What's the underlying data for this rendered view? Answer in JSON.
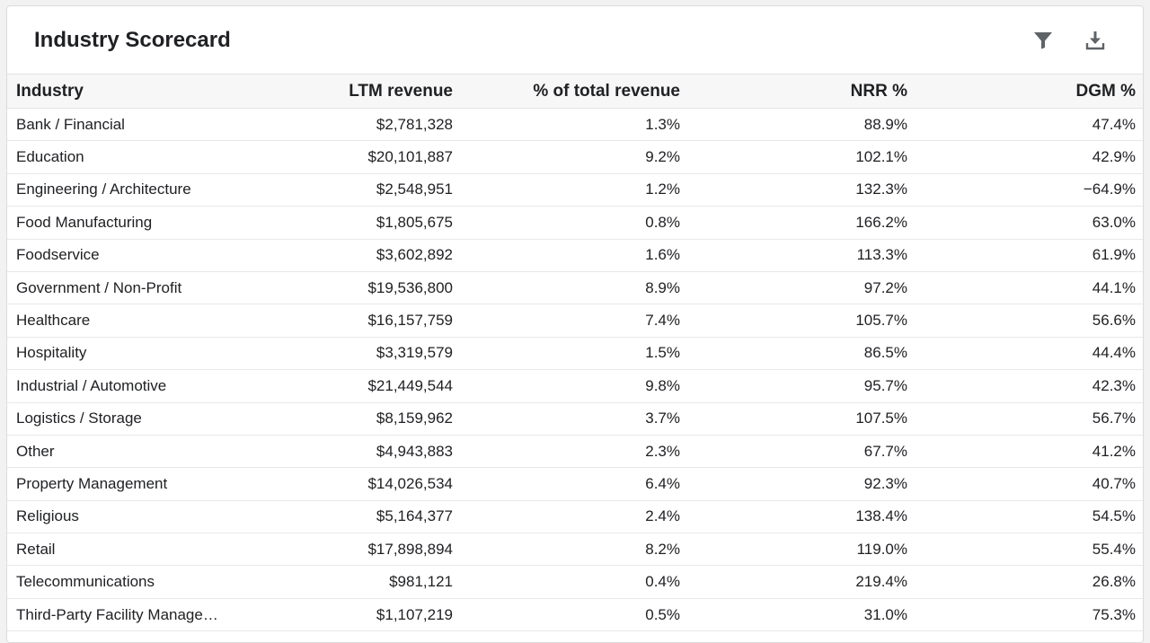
{
  "card": {
    "title": "Industry Scorecard",
    "actions": {
      "filter_icon": "filter-icon",
      "download_icon": "download-icon"
    }
  },
  "table": {
    "columns": [
      "Industry",
      "LTM revenue",
      "% of total revenue",
      "NRR %",
      "DGM %"
    ],
    "rows": [
      {
        "industry": "Bank / Financial",
        "ltm": "$2,781,328",
        "pct": "1.3%",
        "nrr": "88.9%",
        "dgm": "47.4%"
      },
      {
        "industry": "Education",
        "ltm": "$20,101,887",
        "pct": "9.2%",
        "nrr": "102.1%",
        "dgm": "42.9%"
      },
      {
        "industry": "Engineering / Architecture",
        "ltm": "$2,548,951",
        "pct": "1.2%",
        "nrr": "132.3%",
        "dgm": "−64.9%"
      },
      {
        "industry": "Food Manufacturing",
        "ltm": "$1,805,675",
        "pct": "0.8%",
        "nrr": "166.2%",
        "dgm": "63.0%"
      },
      {
        "industry": "Foodservice",
        "ltm": "$3,602,892",
        "pct": "1.6%",
        "nrr": "113.3%",
        "dgm": "61.9%"
      },
      {
        "industry": "Government / Non-Profit",
        "ltm": "$19,536,800",
        "pct": "8.9%",
        "nrr": "97.2%",
        "dgm": "44.1%"
      },
      {
        "industry": "Healthcare",
        "ltm": "$16,157,759",
        "pct": "7.4%",
        "nrr": "105.7%",
        "dgm": "56.6%"
      },
      {
        "industry": "Hospitality",
        "ltm": "$3,319,579",
        "pct": "1.5%",
        "nrr": "86.5%",
        "dgm": "44.4%"
      },
      {
        "industry": "Industrial / Automotive",
        "ltm": "$21,449,544",
        "pct": "9.8%",
        "nrr": "95.7%",
        "dgm": "42.3%"
      },
      {
        "industry": "Logistics / Storage",
        "ltm": "$8,159,962",
        "pct": "3.7%",
        "nrr": "107.5%",
        "dgm": "56.7%"
      },
      {
        "industry": "Other",
        "ltm": "$4,943,883",
        "pct": "2.3%",
        "nrr": "67.7%",
        "dgm": "41.2%"
      },
      {
        "industry": "Property Management",
        "ltm": "$14,026,534",
        "pct": "6.4%",
        "nrr": "92.3%",
        "dgm": "40.7%"
      },
      {
        "industry": "Religious",
        "ltm": "$5,164,377",
        "pct": "2.4%",
        "nrr": "138.4%",
        "dgm": "54.5%"
      },
      {
        "industry": "Retail",
        "ltm": "$17,898,894",
        "pct": "8.2%",
        "nrr": "119.0%",
        "dgm": "55.4%"
      },
      {
        "industry": "Telecommunications",
        "ltm": "$981,121",
        "pct": "0.4%",
        "nrr": "219.4%",
        "dgm": "26.8%"
      },
      {
        "industry": "Third-Party Facility Managem…",
        "ltm": "$1,107,219",
        "pct": "0.5%",
        "nrr": "31.0%",
        "dgm": "75.3%"
      }
    ]
  },
  "colors": {
    "icon": "#5f6368",
    "header_bg": "#f7f7f7",
    "border": "#e3e3e3"
  }
}
